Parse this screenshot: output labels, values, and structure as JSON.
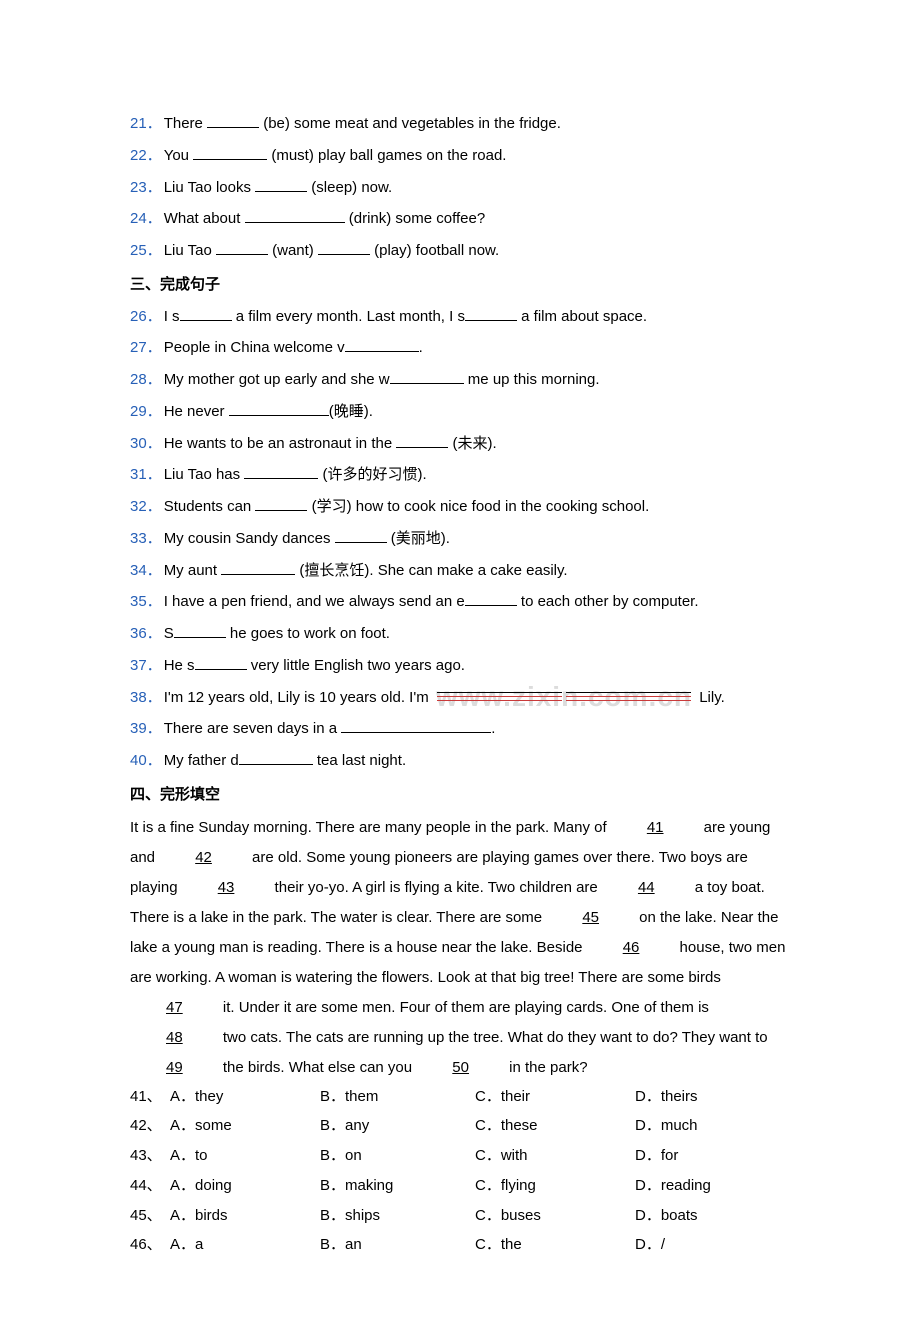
{
  "questions": {
    "q21": {
      "num": "21．",
      "text_a": "There ",
      "text_b": " (be) some meat and vegetables in the fridge."
    },
    "q22": {
      "num": "22．",
      "text_a": "You ",
      "text_b": " (must) play ball games on the road."
    },
    "q23": {
      "num": "23．",
      "text_a": "Liu Tao looks ",
      "text_b": " (sleep) now."
    },
    "q24": {
      "num": "24．",
      "text_a": "What about ",
      "text_b": " (drink) some coffee?"
    },
    "q25": {
      "num": "25．",
      "text_a": "Liu Tao ",
      "text_b": " (want) ",
      "text_c": " (play) football now."
    }
  },
  "section3": "三、完成句子",
  "comp": {
    "q26": {
      "num": "26．",
      "t1": "I s",
      "t2": " a film every month. Last month, I s",
      "t3": " a film about space."
    },
    "q27": {
      "num": "27．",
      "t1": "People in China welcome v",
      "t2": "."
    },
    "q28": {
      "num": "28．",
      "t1": "My mother got up early and she w",
      "t2": " me up this morning."
    },
    "q29": {
      "num": "29．",
      "t1": "He never ",
      "t2": "(晚睡)."
    },
    "q30": {
      "num": "30．",
      "t1": "He wants to be an astronaut in the ",
      "t2": " (未来)."
    },
    "q31": {
      "num": "31．",
      "t1": "Liu Tao has ",
      "t2": " (许多的好习惯)."
    },
    "q32": {
      "num": "32．",
      "t1": "Students can ",
      "t2": " (学习) how to cook nice food in the cooking school."
    },
    "q33": {
      "num": "33．",
      "t1": "My cousin Sandy dances ",
      "t2": " (美丽地)."
    },
    "q34": {
      "num": "34．",
      "t1": "My aunt ",
      "t2": " (擅长烹饪). She can make a cake easily."
    },
    "q35": {
      "num": "35．",
      "t1": "I have a pen friend, and we always send an e",
      "t2": " to each other by computer."
    },
    "q36": {
      "num": "36．",
      "t1": "S",
      "t2": " he goes to work on foot."
    },
    "q37": {
      "num": "37．",
      "t1": "He s",
      "t2": " very little English two years ago."
    },
    "q38": {
      "num": "38．",
      "t1": "I'm 12 years old, Lily is 10 years old. I'm ",
      "t2": "Lily."
    },
    "q39": {
      "num": "39．",
      "t1": "There are seven days in a ",
      "t2": "."
    },
    "q40": {
      "num": "40．",
      "t1": "My father d",
      "t2": " tea last night."
    }
  },
  "section4": "四、完形填空",
  "cloze": {
    "p1_a": "It is a fine Sunday morning. There are many people in the park. Many of ",
    "n41": "41",
    "p1_b": " are young and ",
    "n42": "42",
    "p1_c": " are old. Some young pioneers are playing games over there. Two boys are playing ",
    "n43": "43",
    "p1_d": " their yo-yo. A girl is flying a kite. Two children are ",
    "n44": "44",
    "p1_e": " a toy boat. There is a lake in the park. The water is clear. There are some ",
    "n45": "45",
    "p1_f": " on the lake. Near the lake a young man is reading. There is a house near the lake. Beside ",
    "n46": "46",
    "p1_g": " house, two men are working. A woman is watering the flowers. Look at that big tree! There are some birds ",
    "n47": "47",
    "p1_h": " it. Under it are some men. Four of them are playing cards. One of them is ",
    "n48": "48",
    "p1_i": " two cats. The cats are running up the tree. What do they want to do? They want to ",
    "n49": "49",
    "p1_j": " the birds. What else can you ",
    "n50": "50",
    "p1_k": " in the park?"
  },
  "opts": [
    {
      "n": "41、",
      "a": "A．they",
      "b": "B．them",
      "c": "C．their",
      "d": "D．theirs"
    },
    {
      "n": "42、",
      "a": "A．some",
      "b": "B．any",
      "c": "C．these",
      "d": "D．much"
    },
    {
      "n": "43、",
      "a": "A．to",
      "b": "B．on",
      "c": "C．with",
      "d": "D．for"
    },
    {
      "n": "44、",
      "a": "A．doing",
      "b": "B．making",
      "c": "C．flying",
      "d": "D．reading"
    },
    {
      "n": "45、",
      "a": "A．birds",
      "b": "B．ships",
      "c": "C．buses",
      "d": "D．boats"
    },
    {
      "n": "46、",
      "a": "A．a",
      "b": "B．an",
      "c": "C．the",
      "d": "D．/"
    }
  ],
  "watermark": "www.zixin.com.cn"
}
